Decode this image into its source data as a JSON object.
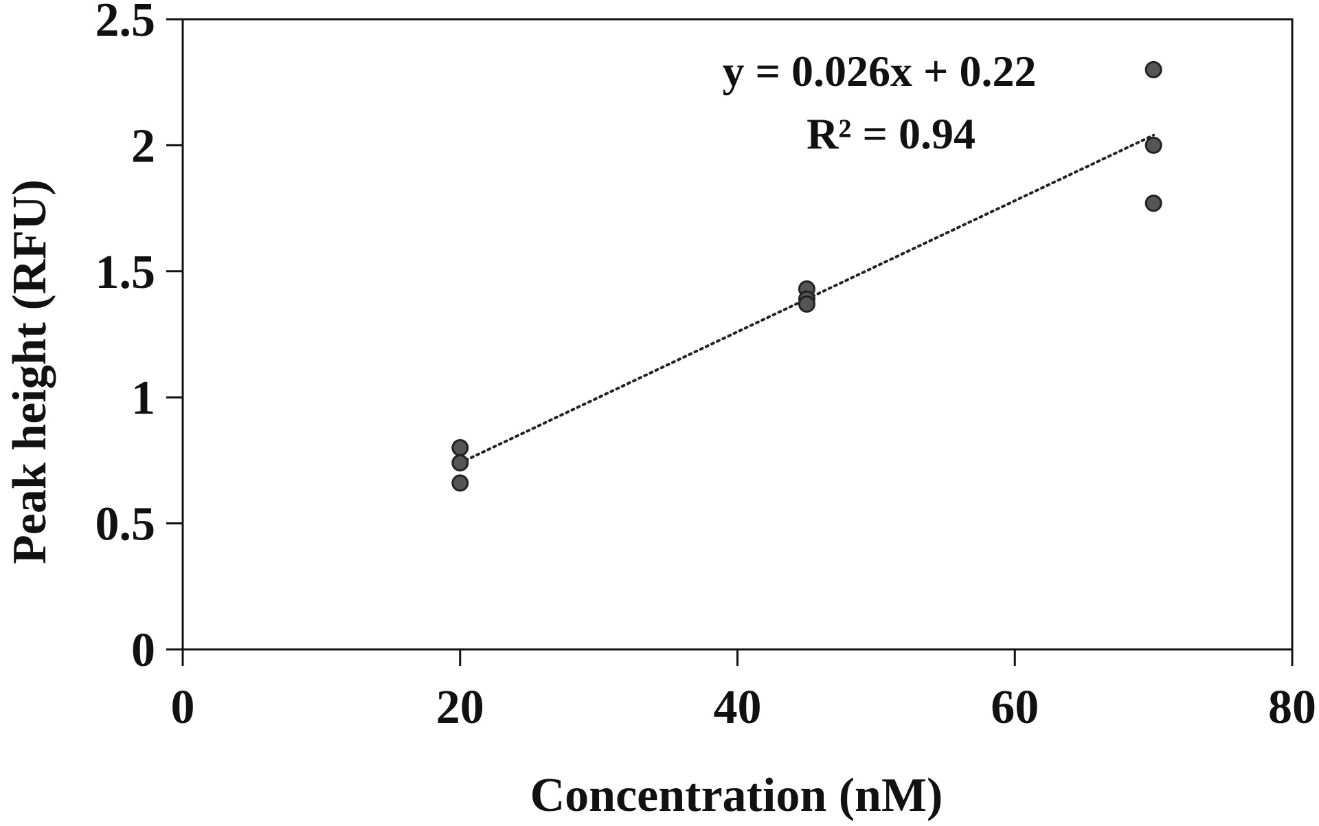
{
  "chart_data": {
    "type": "scatter",
    "title": "",
    "xlabel": "Concentration (nM)",
    "ylabel": "Peak height (RFU)",
    "xlim": [
      0,
      80
    ],
    "ylim": [
      0,
      2.5
    ],
    "x_ticks": [
      0,
      20,
      40,
      60,
      80
    ],
    "y_ticks": [
      0,
      0.5,
      1,
      1.5,
      2,
      2.5
    ],
    "x_tick_labels": [
      "0",
      "20",
      "40",
      "60",
      "80"
    ],
    "y_tick_labels": [
      "0",
      "0.5",
      "1",
      "1.5",
      "2",
      "2.5"
    ],
    "grid": false,
    "series": [
      {
        "points": [
          {
            "x": 20,
            "y": 0.8
          },
          {
            "x": 20,
            "y": 0.74
          },
          {
            "x": 20,
            "y": 0.66
          },
          {
            "x": 45,
            "y": 1.43
          },
          {
            "x": 45,
            "y": 1.39
          },
          {
            "x": 45,
            "y": 1.37
          },
          {
            "x": 70,
            "y": 2.3
          },
          {
            "x": 70,
            "y": 2.0
          },
          {
            "x": 70,
            "y": 1.77
          }
        ],
        "color": "#555555"
      }
    ],
    "trendline": {
      "type": "linear",
      "slope": 0.026,
      "intercept": 0.22,
      "x_range": [
        20,
        70
      ],
      "style": "dotted",
      "color": "#222222"
    },
    "annotations": {
      "equation": "y = 0.026x + 0.22",
      "r_squared": "R² = 0.94"
    }
  }
}
